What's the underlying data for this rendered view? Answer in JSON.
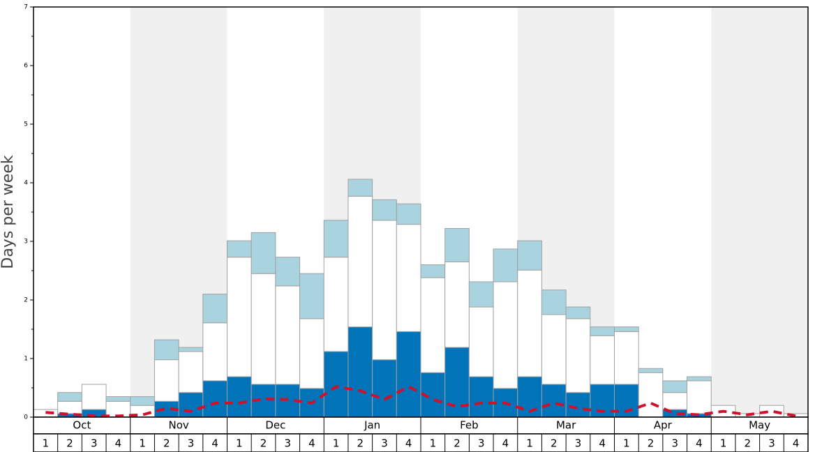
{
  "chart_data": {
    "type": "stacked_bar",
    "y_label": "Days per week",
    "months": [
      "Oct",
      "Nov",
      "Dec",
      "Jan",
      "Feb",
      "Mar",
      "Apr",
      "May"
    ],
    "categories": [
      "1",
      "2",
      "3",
      "4",
      "1",
      "2",
      "3",
      "4",
      "1",
      "2",
      "3",
      "4",
      "1",
      "2",
      "3",
      "4",
      "1",
      "2",
      "3",
      "4",
      "1",
      "2",
      "3",
      "4",
      "1",
      "2",
      "3",
      "4",
      "1",
      "2",
      "3",
      "4"
    ],
    "series": [
      {
        "color": "#0173b9",
        "values": [
          0,
          0.06,
          0.13,
          0,
          0,
          0.27,
          0.42,
          0.62,
          0.69,
          0.56,
          0.56,
          0.49,
          1.12,
          1.54,
          0.98,
          1.46,
          0.76,
          1.19,
          0.69,
          0.49,
          0.69,
          0.56,
          0.42,
          0.56,
          0.56,
          0,
          0.13,
          0.06,
          0,
          0,
          0,
          0
        ]
      },
      {
        "color": "#ffffff",
        "values": [
          0.13,
          0.21,
          0.43,
          0.27,
          0.2,
          0.71,
          0.7,
          0.99,
          2.04,
          1.89,
          1.68,
          1.19,
          1.61,
          2.23,
          2.38,
          1.83,
          1.62,
          1.46,
          1.19,
          1.82,
          1.82,
          1.19,
          1.26,
          0.83,
          0.9,
          0.76,
          0.29,
          0.56,
          0.2,
          0.06,
          0.2,
          0.06
        ]
      },
      {
        "color": "#aad3e0",
        "values": [
          0,
          0.15,
          0,
          0.08,
          0.15,
          0.34,
          0.07,
          0.49,
          0.28,
          0.7,
          0.49,
          0.77,
          0.63,
          0.29,
          0.35,
          0.35,
          0.22,
          0.57,
          0.43,
          0.56,
          0.5,
          0.42,
          0.2,
          0.15,
          0.08,
          0.07,
          0.2,
          0.07,
          0,
          0,
          0,
          0
        ]
      }
    ],
    "line": {
      "color": "#d0112b",
      "values": [
        0.08,
        0.05,
        0.02,
        0.02,
        0.04,
        0.15,
        0.1,
        0.24,
        0.24,
        0.31,
        0.3,
        0.24,
        0.52,
        0.45,
        0.3,
        0.52,
        0.3,
        0.18,
        0.24,
        0.24,
        0.1,
        0.24,
        0.15,
        0.1,
        0.1,
        0.24,
        0.06,
        0.04,
        0.1,
        0.04,
        0.1,
        0.02
      ]
    },
    "ylim": [
      0,
      7
    ],
    "yticks": [
      0,
      1,
      2,
      3,
      4,
      5,
      6,
      7
    ],
    "yminorticks": [
      0.5,
      1.5,
      2.5,
      3.5,
      4.5,
      5.5,
      6.5
    ]
  }
}
